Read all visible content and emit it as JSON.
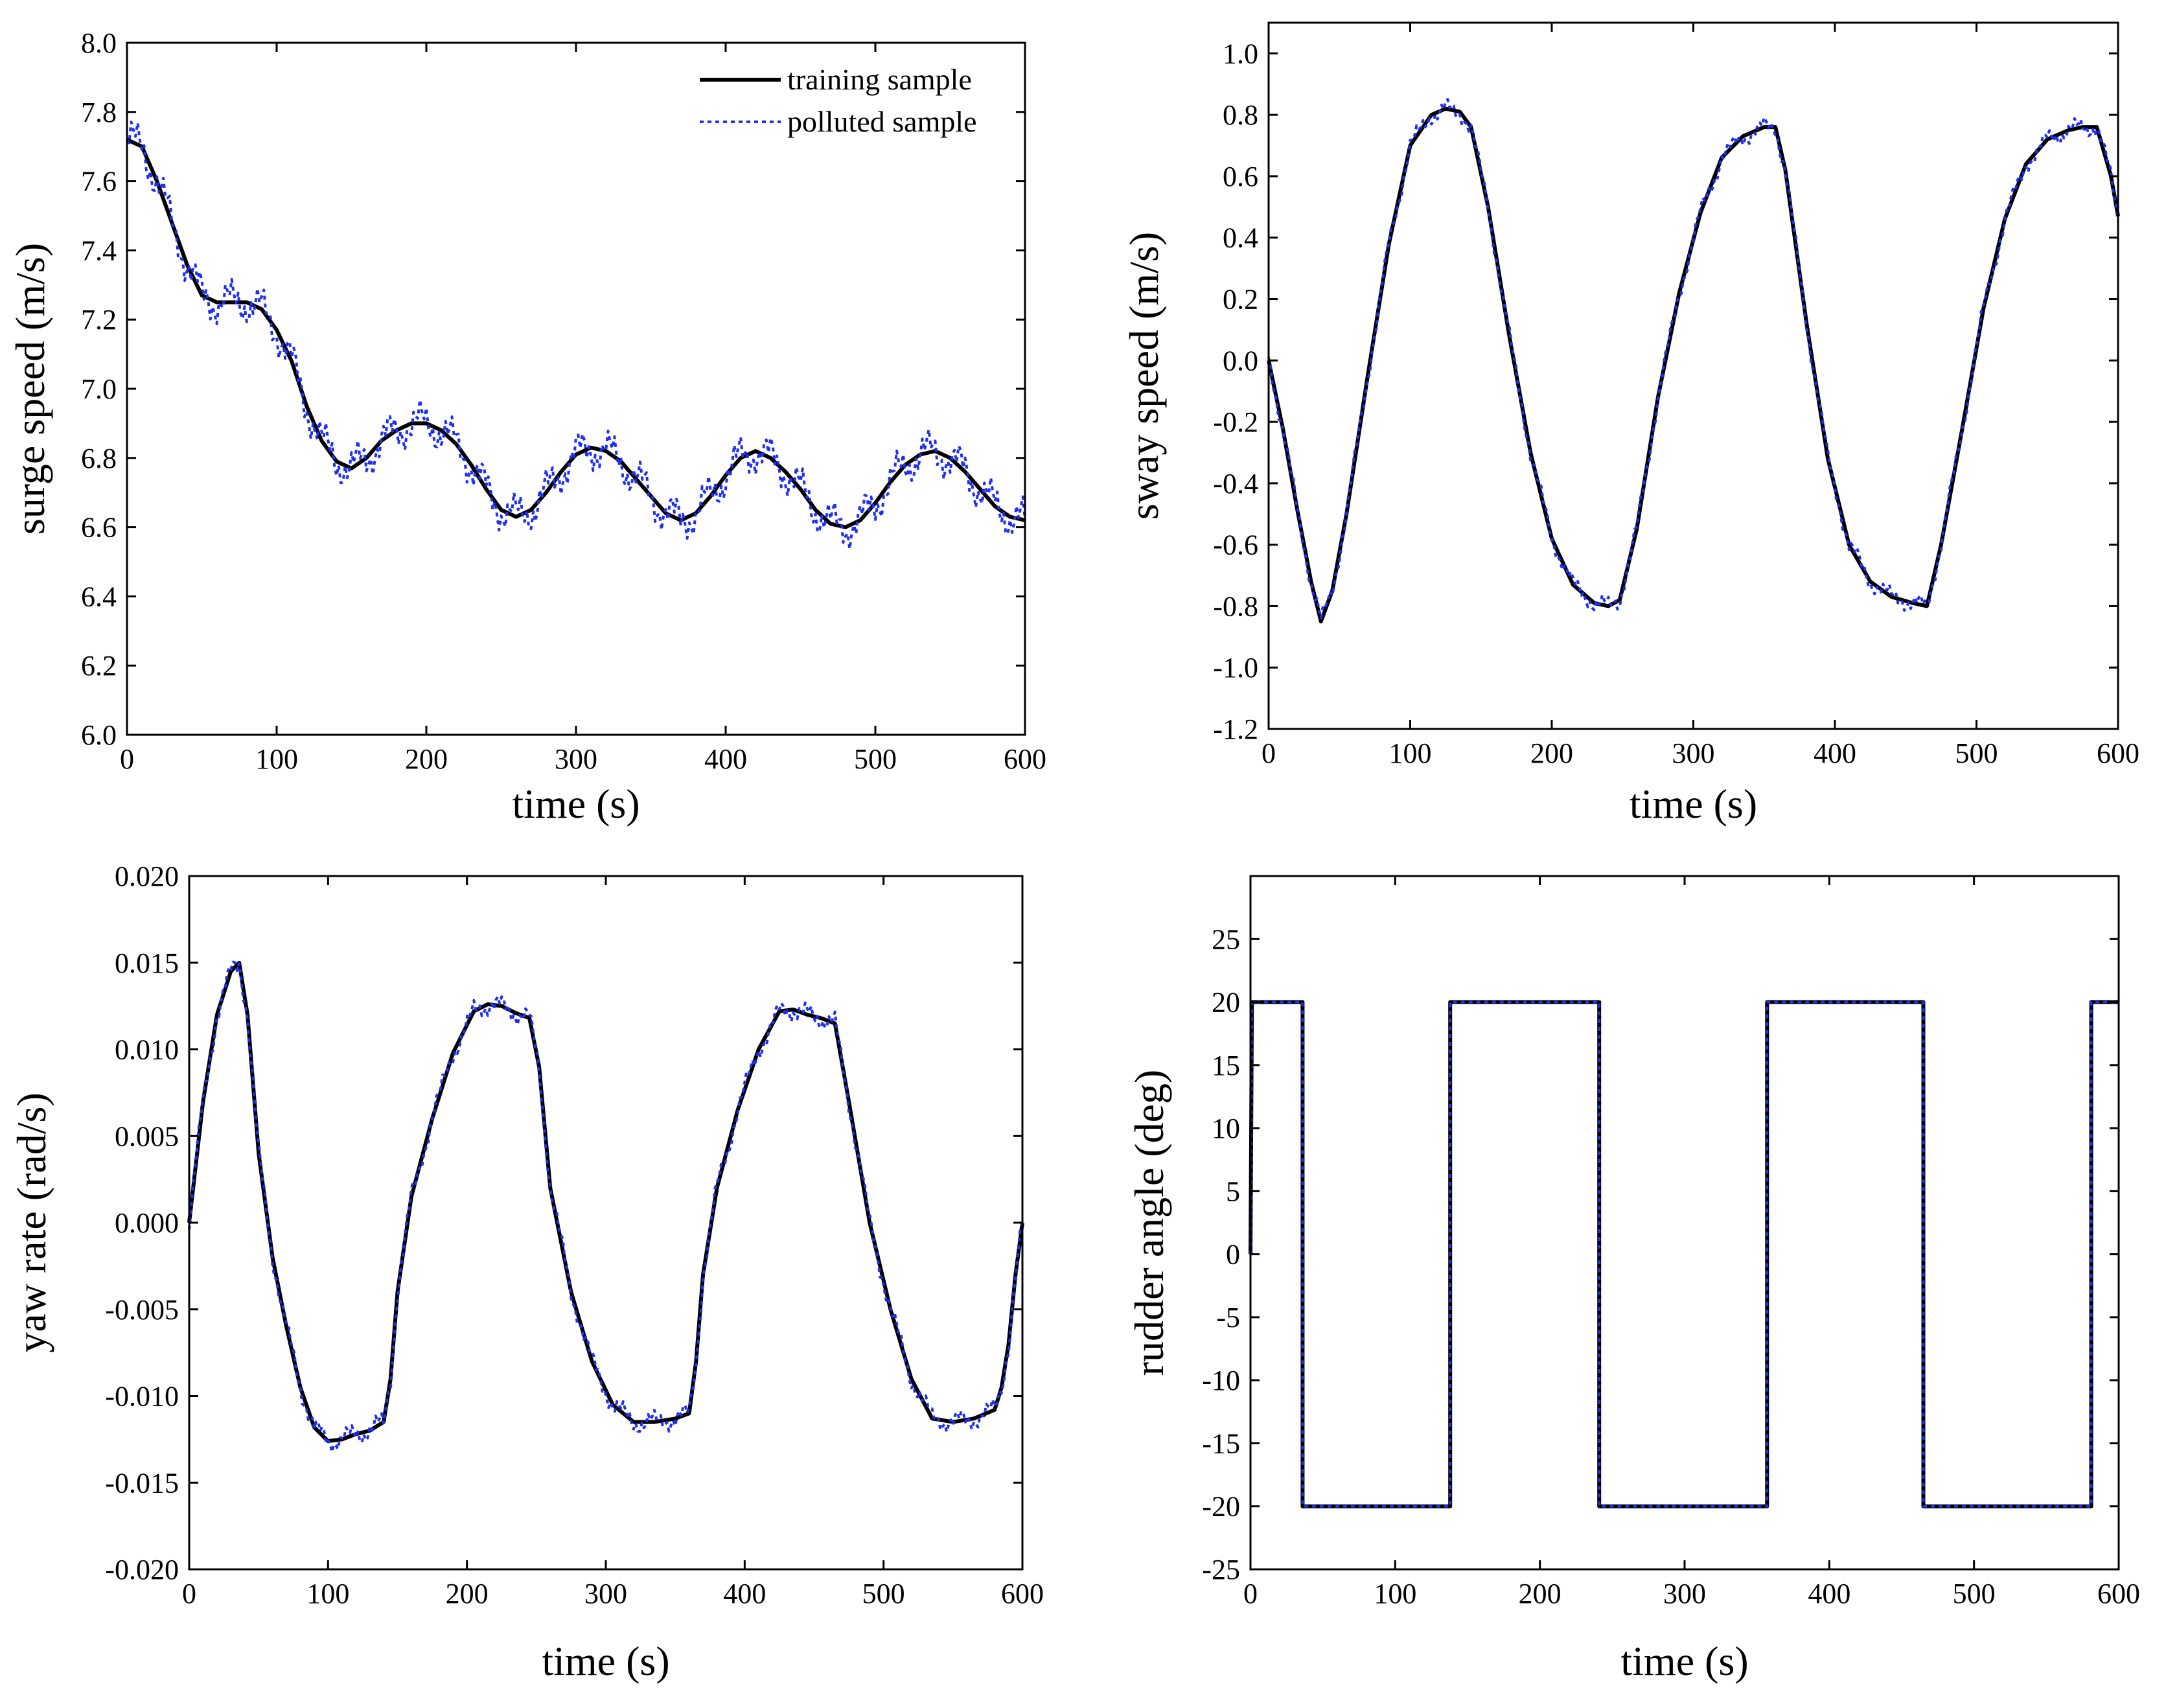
{
  "figure": {
    "legend": {
      "training_label": "training sample",
      "polluted_label": "polluted sample",
      "training_color": "#000000",
      "polluted_color": "#1f2ff0",
      "placement": "top-right of first panel"
    }
  },
  "chart_data": [
    {
      "type": "line",
      "panel": "top-left",
      "xlabel": "time (s)",
      "ylabel": "surge speed (m/s)",
      "xlim": [
        0,
        600
      ],
      "ylim": [
        6.0,
        8.0
      ],
      "xticks": [
        0,
        100,
        200,
        300,
        400,
        500,
        600
      ],
      "yticks": [
        6.0,
        6.2,
        6.4,
        6.6,
        6.8,
        7.0,
        7.2,
        7.4,
        7.6,
        7.8,
        8.0
      ],
      "ytick_decimals": 1,
      "noise": 0.07,
      "series": [
        {
          "name": "training sample",
          "style": "solid",
          "x": [
            0,
            10,
            20,
            30,
            40,
            50,
            60,
            70,
            80,
            90,
            100,
            110,
            120,
            130,
            140,
            150,
            160,
            170,
            180,
            190,
            200,
            210,
            220,
            230,
            240,
            250,
            260,
            270,
            280,
            290,
            300,
            310,
            320,
            330,
            340,
            350,
            360,
            370,
            380,
            390,
            400,
            410,
            420,
            430,
            440,
            450,
            460,
            470,
            480,
            490,
            500,
            510,
            520,
            530,
            540,
            550,
            560,
            570,
            580,
            590,
            600
          ],
          "y": [
            7.72,
            7.7,
            7.6,
            7.48,
            7.36,
            7.27,
            7.25,
            7.25,
            7.25,
            7.23,
            7.17,
            7.08,
            6.95,
            6.85,
            6.79,
            6.77,
            6.8,
            6.85,
            6.88,
            6.9,
            6.9,
            6.88,
            6.84,
            6.78,
            6.71,
            6.65,
            6.63,
            6.65,
            6.7,
            6.76,
            6.81,
            6.83,
            6.82,
            6.79,
            6.74,
            6.69,
            6.64,
            6.62,
            6.64,
            6.69,
            6.75,
            6.8,
            6.82,
            6.8,
            6.76,
            6.71,
            6.65,
            6.61,
            6.6,
            6.62,
            6.67,
            6.73,
            6.78,
            6.81,
            6.82,
            6.8,
            6.76,
            6.71,
            6.66,
            6.63,
            6.62
          ]
        },
        {
          "name": "polluted sample",
          "style": "dotted",
          "derived_from": "training sample with additive noise"
        }
      ]
    },
    {
      "type": "line",
      "panel": "top-right",
      "xlabel": "time (s)",
      "ylabel": "sway speed (m/s)",
      "xlim": [
        0,
        600
      ],
      "ylim": [
        -1.2,
        1.1
      ],
      "xticks": [
        0,
        100,
        200,
        300,
        400,
        500,
        600
      ],
      "yticks": [
        -1.2,
        -1.0,
        -0.8,
        -0.6,
        -0.4,
        -0.2,
        0.0,
        0.2,
        0.4,
        0.6,
        0.8,
        1.0
      ],
      "ytick_decimals": 1,
      "noise": 0.035,
      "series": [
        {
          "name": "training sample",
          "style": "solid",
          "x": [
            0,
            10,
            20,
            30,
            37,
            45,
            55,
            70,
            85,
            100,
            115,
            125,
            135,
            143,
            155,
            170,
            185,
            200,
            215,
            230,
            240,
            248,
            260,
            275,
            290,
            305,
            320,
            335,
            350,
            358,
            365,
            380,
            395,
            410,
            425,
            440,
            455,
            465,
            475,
            490,
            505,
            520,
            535,
            550,
            565,
            575,
            585,
            595,
            600
          ],
          "y": [
            0.0,
            -0.22,
            -0.48,
            -0.72,
            -0.85,
            -0.75,
            -0.5,
            -0.05,
            0.38,
            0.7,
            0.8,
            0.82,
            0.81,
            0.76,
            0.5,
            0.08,
            -0.3,
            -0.58,
            -0.73,
            -0.79,
            -0.8,
            -0.78,
            -0.55,
            -0.12,
            0.22,
            0.48,
            0.66,
            0.73,
            0.76,
            0.76,
            0.62,
            0.12,
            -0.32,
            -0.6,
            -0.72,
            -0.77,
            -0.79,
            -0.8,
            -0.6,
            -0.22,
            0.17,
            0.46,
            0.64,
            0.72,
            0.75,
            0.76,
            0.76,
            0.6,
            0.47
          ]
        },
        {
          "name": "polluted sample",
          "style": "dotted",
          "derived_from": "training sample with additive noise"
        }
      ]
    },
    {
      "type": "line",
      "panel": "bottom-left",
      "xlabel": "time (s)",
      "ylabel": "yaw rate (rad/s)",
      "xlim": [
        0,
        600
      ],
      "ylim": [
        -0.02,
        0.02
      ],
      "xticks": [
        0,
        100,
        200,
        300,
        400,
        500,
        600
      ],
      "yticks": [
        -0.02,
        -0.015,
        -0.01,
        -0.005,
        0.0,
        0.005,
        0.01,
        0.015,
        0.02
      ],
      "ytick_decimals": 3,
      "noise": 0.0007,
      "series": [
        {
          "name": "training sample",
          "style": "solid",
          "x": [
            0,
            10,
            20,
            30,
            36,
            42,
            50,
            60,
            70,
            80,
            90,
            100,
            110,
            120,
            130,
            140,
            145,
            150,
            160,
            175,
            190,
            205,
            215,
            225,
            235,
            245,
            252,
            260,
            275,
            290,
            305,
            320,
            335,
            350,
            360,
            365,
            370,
            380,
            395,
            410,
            425,
            435,
            445,
            455,
            465,
            475,
            490,
            505,
            520,
            535,
            550,
            565,
            580,
            585,
            590,
            595,
            600
          ],
          "y": [
            0.0,
            0.007,
            0.012,
            0.0145,
            0.015,
            0.012,
            0.004,
            -0.002,
            -0.006,
            -0.0095,
            -0.0118,
            -0.0126,
            -0.0125,
            -0.0122,
            -0.012,
            -0.0115,
            -0.009,
            -0.004,
            0.0015,
            0.006,
            0.0098,
            0.0122,
            0.0126,
            0.0125,
            0.0121,
            0.0118,
            0.009,
            0.002,
            -0.004,
            -0.008,
            -0.0105,
            -0.0115,
            -0.0115,
            -0.0113,
            -0.011,
            -0.008,
            -0.003,
            0.002,
            0.0065,
            0.01,
            0.0122,
            0.0123,
            0.012,
            0.0118,
            0.0115,
            0.007,
            0.0,
            -0.005,
            -0.009,
            -0.0113,
            -0.0115,
            -0.0113,
            -0.0108,
            -0.0095,
            -0.007,
            -0.003,
            0.0
          ]
        },
        {
          "name": "polluted sample",
          "style": "dotted",
          "derived_from": "training sample with additive noise"
        }
      ]
    },
    {
      "type": "line",
      "panel": "bottom-right",
      "xlabel": "time (s)",
      "ylabel": "rudder angle (deg)",
      "xlim": [
        0,
        600
      ],
      "ylim": [
        -25,
        30
      ],
      "xticks": [
        0,
        100,
        200,
        300,
        400,
        500,
        600
      ],
      "yticks": [
        -25,
        -20,
        -15,
        -10,
        -5,
        0,
        5,
        10,
        15,
        20,
        25
      ],
      "ytick_decimals": 0,
      "noise": 0,
      "series": [
        {
          "name": "training sample",
          "style": "solid",
          "x": [
            0,
            1,
            36,
            36,
            138,
            138,
            241,
            241,
            357,
            357,
            465,
            465,
            581,
            581,
            600
          ],
          "y": [
            0,
            20,
            20,
            -20,
            -20,
            20,
            20,
            -20,
            -20,
            20,
            20,
            -20,
            -20,
            20,
            20
          ]
        },
        {
          "name": "polluted sample",
          "style": "dotted",
          "derived_from": "same as training sample"
        }
      ]
    }
  ]
}
